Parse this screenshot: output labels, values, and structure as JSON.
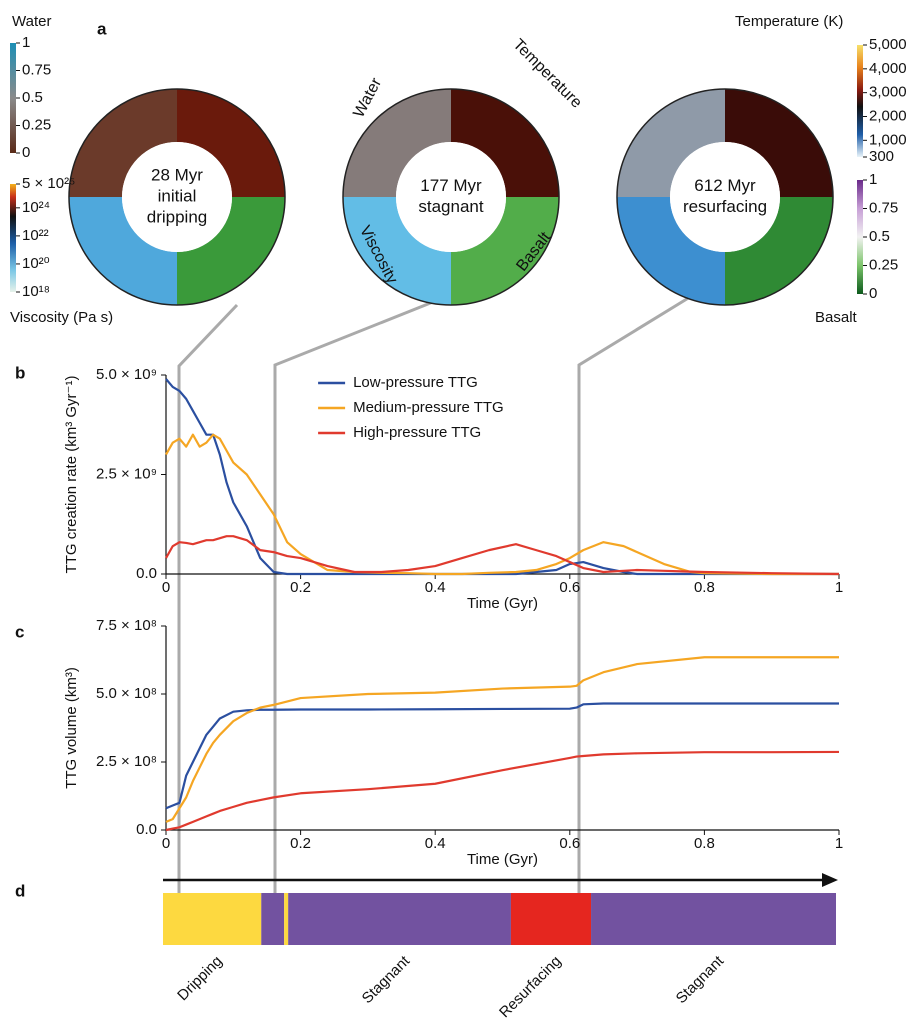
{
  "panel_a": {
    "letter": "a",
    "snapshots": [
      {
        "lines": [
          "28 Myr",
          "initial",
          "dripping"
        ]
      },
      {
        "lines": [
          "177 Myr",
          "stagnant"
        ]
      },
      {
        "lines": [
          "612 Myr",
          "resurfacing"
        ]
      }
    ],
    "quadrant_labels": {
      "water": "Water",
      "temperature": "Temperature",
      "viscosity": "Viscosity",
      "basalt": "Basalt"
    },
    "colorbars": {
      "water": {
        "title": "Water",
        "lim": [
          0,
          1
        ],
        "ticks": [
          1,
          0.75,
          0.5,
          0.25,
          0
        ]
      },
      "viscosity": {
        "title": "Viscosity (Pa s)",
        "log": true,
        "lim": [
          1e+18,
          5e+25
        ],
        "ticks": [
          {
            "value": 5e+25,
            "label": "5 × 10²⁵"
          },
          {
            "value": 1e+24,
            "label": "10²⁴"
          },
          {
            "value": 1e+22,
            "label": "10²²"
          },
          {
            "value": 1e+20,
            "label": "10²⁰"
          },
          {
            "value": 1e+18,
            "label": "10¹⁸"
          }
        ]
      },
      "temperature": {
        "title": "Temperature (K)",
        "lim": [
          300,
          5000
        ],
        "ticks": [
          {
            "value": 5000,
            "label": "5,000"
          },
          {
            "value": 4000,
            "label": "4,000"
          },
          {
            "value": 3000,
            "label": "3,000"
          },
          {
            "value": 2000,
            "label": "2,000"
          },
          {
            "value": 1000,
            "label": "1,000"
          },
          300
        ]
      },
      "basalt": {
        "title": "Basalt",
        "lim": [
          0,
          1
        ],
        "ticks": [
          1,
          0.75,
          0.5,
          0.25,
          0
        ]
      }
    }
  },
  "chart_data": [
    {
      "type": "line",
      "letter": "b",
      "xlabel": "Time (Gyr)",
      "ylabel": "TTG creation rate (km³ Gyr⁻¹)",
      "xlim": [
        0,
        1
      ],
      "xticks": [
        0,
        0.2,
        0.4,
        0.6,
        0.8,
        1
      ],
      "ylim": [
        0,
        5000000000.0
      ],
      "yticks": [
        {
          "value": 0,
          "label": "0.0"
        },
        {
          "value": 2500000000.0,
          "label": "2.5 × 10⁹"
        },
        {
          "value": 5000000000.0,
          "label": "5.0 × 10⁹"
        }
      ],
      "legend": "top-center",
      "x": [
        0,
        0.01,
        0.02,
        0.03,
        0.04,
        0.05,
        0.06,
        0.07,
        0.08,
        0.09,
        0.1,
        0.12,
        0.14,
        0.16,
        0.18,
        0.2,
        0.24,
        0.28,
        0.32,
        0.36,
        0.4,
        0.44,
        0.48,
        0.52,
        0.55,
        0.58,
        0.6,
        0.62,
        0.65,
        0.68,
        0.7,
        0.74,
        0.78,
        0.8,
        0.9,
        1
      ],
      "series": [
        {
          "name": "Low-pressure TTG",
          "color": "#2b4fa0",
          "values": [
            4900000000.0,
            4700000000.0,
            4600000000.0,
            4400000000.0,
            4100000000.0,
            3800000000.0,
            3500000000.0,
            3500000000.0,
            3000000000.0,
            2300000000.0,
            1800000000.0,
            1200000000.0,
            400000000.0,
            50000000.0,
            0,
            0,
            0,
            0,
            0,
            0,
            0,
            0,
            0,
            0,
            50000000.0,
            100000000.0,
            250000000.0,
            300000000.0,
            150000000.0,
            50000000.0,
            0,
            0,
            0,
            0,
            0,
            0
          ]
        },
        {
          "name": "Medium-pressure TTG",
          "color": "#f5a623",
          "values": [
            3000000000.0,
            3300000000.0,
            3400000000.0,
            3200000000.0,
            3500000000.0,
            3200000000.0,
            3300000000.0,
            3500000000.0,
            3400000000.0,
            3100000000.0,
            2800000000.0,
            2500000000.0,
            2000000000.0,
            1500000000.0,
            800000000.0,
            500000000.0,
            100000000.0,
            50000000.0,
            30000000.0,
            20000000.0,
            0,
            0,
            30000000.0,
            50000000.0,
            100000000.0,
            250000000.0,
            400000000.0,
            600000000.0,
            800000000.0,
            700000000.0,
            550000000.0,
            250000000.0,
            50000000.0,
            20000000.0,
            0,
            0
          ]
        },
        {
          "name": "High-pressure TTG",
          "color": "#e03a2e",
          "values": [
            400000000.0,
            700000000.0,
            800000000.0,
            780000000.0,
            750000000.0,
            800000000.0,
            850000000.0,
            850000000.0,
            900000000.0,
            950000000.0,
            950000000.0,
            850000000.0,
            600000000.0,
            550000000.0,
            450000000.0,
            400000000.0,
            200000000.0,
            50000000.0,
            50000000.0,
            100000000.0,
            200000000.0,
            400000000.0,
            600000000.0,
            750000000.0,
            600000000.0,
            450000000.0,
            300000000.0,
            150000000.0,
            50000000.0,
            80000000.0,
            100000000.0,
            80000000.0,
            60000000.0,
            50000000.0,
            20000000.0,
            0
          ]
        }
      ]
    },
    {
      "type": "line",
      "letter": "c",
      "xlabel": "Time (Gyr)",
      "ylabel": "TTG volume (km³)",
      "xlim": [
        0,
        1
      ],
      "xticks": [
        0,
        0.2,
        0.4,
        0.6,
        0.8,
        1
      ],
      "ylim": [
        0,
        750000000.0
      ],
      "yticks": [
        {
          "value": 0,
          "label": "0.0"
        },
        {
          "value": 250000000.0,
          "label": "2.5 × 10⁸"
        },
        {
          "value": 500000000.0,
          "label": "5.0 × 10⁸"
        },
        {
          "value": 750000000.0,
          "label": "7.5 × 10⁸"
        }
      ],
      "x": [
        0,
        0.01,
        0.02,
        0.03,
        0.04,
        0.05,
        0.06,
        0.07,
        0.08,
        0.1,
        0.12,
        0.14,
        0.16,
        0.2,
        0.3,
        0.4,
        0.5,
        0.6,
        0.61,
        0.62,
        0.65,
        0.7,
        0.8,
        0.9,
        1
      ],
      "series": [
        {
          "color": "#2b4fa0",
          "values": [
            80000000.0,
            90000000.0,
            100000000.0,
            200000000.0,
            250000000.0,
            300000000.0,
            350000000.0,
            380000000.0,
            410000000.0,
            435000000.0,
            440000000.0,
            442000000.0,
            442000000.0,
            443000000.0,
            443000000.0,
            444000000.0,
            445000000.0,
            446000000.0,
            450000000.0,
            462000000.0,
            465000000.0,
            465000000.0,
            465000000.0,
            465000000.0,
            465000000.0
          ]
        },
        {
          "color": "#f5a623",
          "values": [
            30000000.0,
            40000000.0,
            80000000.0,
            120000000.0,
            180000000.0,
            230000000.0,
            280000000.0,
            320000000.0,
            350000000.0,
            400000000.0,
            430000000.0,
            450000000.0,
            460000000.0,
            485000000.0,
            500000000.0,
            505000000.0,
            520000000.0,
            527000000.0,
            530000000.0,
            550000000.0,
            580000000.0,
            610000000.0,
            635000000.0,
            635000000.0,
            635000000.0
          ]
        },
        {
          "color": "#e03a2e",
          "values": [
            0,
            5000000.0,
            10000000.0,
            20000000.0,
            30000000.0,
            40000000.0,
            50000000.0,
            60000000.0,
            70000000.0,
            85000000.0,
            100000000.0,
            110000000.0,
            120000000.0,
            135000000.0,
            150000000.0,
            170000000.0,
            220000000.0,
            265000000.0,
            270000000.0,
            272000000.0,
            278000000.0,
            282000000.0,
            286000000.0,
            286000000.0,
            287000000.0
          ]
        }
      ]
    },
    {
      "type": "timeline",
      "letter": "d",
      "xlim": [
        0,
        1
      ],
      "segments": [
        {
          "label": "Dripping",
          "start": 0,
          "end": 0.146,
          "color": "#fdd940"
        },
        {
          "label": null,
          "start": 0.146,
          "end": 0.18,
          "color": "#7252a0"
        },
        {
          "label": null,
          "start": 0.18,
          "end": 0.186,
          "color": "#fdd940"
        },
        {
          "label": "Stagnant",
          "start": 0.186,
          "end": 0.517,
          "color": "#7252a0"
        },
        {
          "label": "Resurfacing",
          "start": 0.517,
          "end": 0.636,
          "color": "#e5261f"
        },
        {
          "label": "Stagnant",
          "start": 0.636,
          "end": 1,
          "color": "#7252a0"
        }
      ]
    }
  ]
}
